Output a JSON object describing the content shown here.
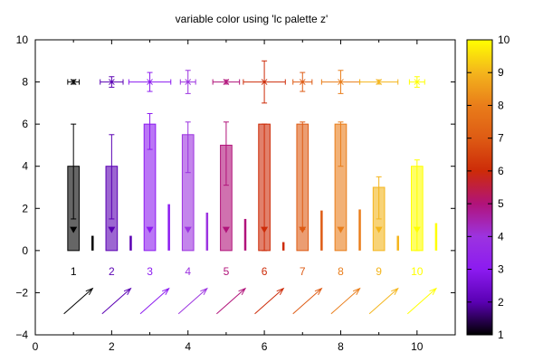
{
  "chart_data": {
    "type": "bar",
    "title": "variable color using 'lc palette z'",
    "xlim": [
      0,
      11
    ],
    "ylim": [
      -4,
      10
    ],
    "x_ticks": [
      "0",
      "2",
      "4",
      "6",
      "8",
      "10"
    ],
    "y_ticks": [
      "−4",
      "−2",
      "0",
      "2",
      "4",
      "6",
      "8",
      "10"
    ],
    "colorbar": {
      "range": [
        1,
        10
      ],
      "ticks": [
        "1",
        "2",
        "3",
        "4",
        "5",
        "6",
        "7",
        "8",
        "9",
        "10"
      ]
    },
    "palette": [
      "#000000",
      "#5a00b3",
      "#8c1bf0",
      "#9c33e0",
      "#b1137a",
      "#cd2b08",
      "#de5b14",
      "#e97d1a",
      "#f4b51c",
      "#ffff00"
    ],
    "boxes": [
      {
        "x": 1,
        "z": 1,
        "low": 0,
        "high": 4,
        "whisker_low": 1.5,
        "whisker_high": 6,
        "marker": 1
      },
      {
        "x": 2,
        "z": 2,
        "low": 0,
        "high": 4,
        "whisker_low": 1.5,
        "whisker_high": 5.5,
        "marker": 1
      },
      {
        "x": 3,
        "z": 3,
        "low": 0,
        "high": 6,
        "whisker_low": 4.8,
        "whisker_high": 6.5,
        "marker": 1
      },
      {
        "x": 4,
        "z": 4,
        "low": 0,
        "high": 5.5,
        "whisker_low": 3.7,
        "whisker_high": 6.1,
        "marker": 1
      },
      {
        "x": 5,
        "z": 5,
        "low": 0,
        "high": 5,
        "whisker_low": 3.1,
        "whisker_high": 6.1,
        "marker": 1
      },
      {
        "x": 6,
        "z": 6,
        "low": 0,
        "high": 6,
        "whisker_low": 0,
        "whisker_high": 6,
        "marker": 1
      },
      {
        "x": 7,
        "z": 7,
        "low": 0,
        "high": 6,
        "whisker_low": 1.0,
        "whisker_high": 6.1,
        "marker": 1
      },
      {
        "x": 8,
        "z": 8,
        "low": 0,
        "high": 6,
        "whisker_low": 4.0,
        "whisker_high": 6.1,
        "marker": 1
      },
      {
        "x": 9,
        "z": 9,
        "low": 0,
        "high": 3,
        "whisker_low": 1.5,
        "whisker_high": 3.5,
        "marker": 1
      },
      {
        "x": 10,
        "z": 10,
        "low": 0,
        "high": 4,
        "whisker_low": 0,
        "whisker_high": 4.3,
        "marker": 1
      }
    ],
    "impulses": [
      {
        "x": 1.5,
        "y": 0.7,
        "z": 1
      },
      {
        "x": 2.5,
        "y": 0.7,
        "z": 2
      },
      {
        "x": 3.5,
        "y": 2.2,
        "z": 3
      },
      {
        "x": 4.5,
        "y": 1.8,
        "z": 4
      },
      {
        "x": 5.5,
        "y": 1.5,
        "z": 5
      },
      {
        "x": 6.5,
        "y": 0.4,
        "z": 6
      },
      {
        "x": 7.5,
        "y": 1.9,
        "z": 7
      },
      {
        "x": 8.5,
        "y": 1.95,
        "z": 8
      },
      {
        "x": 9.5,
        "y": 0.7,
        "z": 9
      },
      {
        "x": 10.5,
        "y": 1.3,
        "z": 10
      }
    ],
    "xyerrorbars": [
      {
        "x": 1,
        "y": 8,
        "xerr": 0.15,
        "yerr": 0.1,
        "z": 1
      },
      {
        "x": 2,
        "y": 8,
        "xerr": 0.3,
        "yerr": 0.25,
        "z": 2
      },
      {
        "x": 3,
        "y": 8,
        "xerr": 0.55,
        "yerr": 0.45,
        "z": 3
      },
      {
        "x": 4,
        "y": 8,
        "xerr": 0.2,
        "yerr": 0.55,
        "z": 4
      },
      {
        "x": 5,
        "y": 8,
        "xerr": 0.35,
        "yerr": 0.1,
        "z": 5
      },
      {
        "x": 6,
        "y": 8,
        "xerr": 0.55,
        "yerr": 1.0,
        "z": 6
      },
      {
        "x": 7,
        "y": 8,
        "xerr": 0.25,
        "yerr": 0.45,
        "z": 7
      },
      {
        "x": 8,
        "y": 8,
        "xerr": 0.5,
        "yerr": 0.55,
        "z": 8
      },
      {
        "x": 9,
        "y": 8,
        "xerr": 0.5,
        "yerr": 0.1,
        "z": 9
      },
      {
        "x": 10,
        "y": 8,
        "xerr": 0.2,
        "yerr": 0.25,
        "z": 10
      }
    ],
    "number_labels": [
      {
        "x": 1,
        "y": -1,
        "text": "1",
        "z": 1
      },
      {
        "x": 2,
        "y": -1,
        "text": "2",
        "z": 2
      },
      {
        "x": 3,
        "y": -1,
        "text": "3",
        "z": 3
      },
      {
        "x": 4,
        "y": -1,
        "text": "4",
        "z": 4
      },
      {
        "x": 5,
        "y": -1,
        "text": "5",
        "z": 5
      },
      {
        "x": 6,
        "y": -1,
        "text": "6",
        "z": 6
      },
      {
        "x": 7,
        "y": -1,
        "text": "7",
        "z": 7
      },
      {
        "x": 8,
        "y": -1,
        "text": "8",
        "z": 8
      },
      {
        "x": 9,
        "y": -1,
        "text": "9",
        "z": 9
      },
      {
        "x": 10,
        "y": -1,
        "text": "10",
        "z": 10
      }
    ],
    "arrows": [
      {
        "x": 1,
        "y": -3,
        "dx": 0.5,
        "dy": 1.2,
        "z": 1
      },
      {
        "x": 2,
        "y": -3,
        "dx": 0.5,
        "dy": 1.2,
        "z": 2
      },
      {
        "x": 3,
        "y": -3,
        "dx": 0.5,
        "dy": 1.2,
        "z": 3
      },
      {
        "x": 4,
        "y": -3,
        "dx": 0.5,
        "dy": 1.2,
        "z": 4
      },
      {
        "x": 5,
        "y": -3,
        "dx": 0.5,
        "dy": 1.2,
        "z": 5
      },
      {
        "x": 6,
        "y": -3,
        "dx": 0.5,
        "dy": 1.2,
        "z": 6
      },
      {
        "x": 7,
        "y": -3,
        "dx": 0.5,
        "dy": 1.2,
        "z": 7
      },
      {
        "x": 8,
        "y": -3,
        "dx": 0.5,
        "dy": 1.2,
        "z": 8
      },
      {
        "x": 9,
        "y": -3,
        "dx": 0.5,
        "dy": 1.2,
        "z": 9
      },
      {
        "x": 10,
        "y": -3,
        "dx": 0.5,
        "dy": 1.2,
        "z": 10
      }
    ]
  }
}
